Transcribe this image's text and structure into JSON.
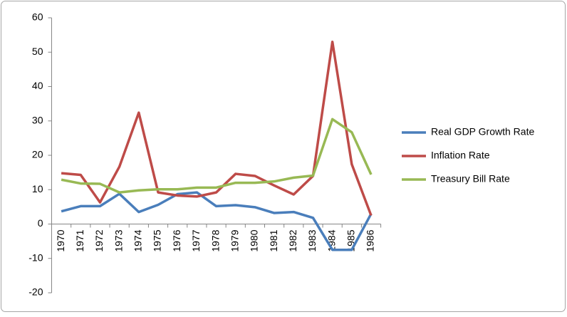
{
  "chart_data": {
    "type": "line",
    "categories": [
      "1970",
      "1971",
      "1972",
      "1973",
      "1974",
      "1975",
      "1976",
      "1977",
      "1978",
      "1979",
      "1980",
      "1981",
      "1982",
      "1983",
      "1984",
      "1985",
      "1986"
    ],
    "series": [
      {
        "name": "Real GDP Growth Rate",
        "color": "#4a7ebb",
        "values": [
          3.7,
          5.2,
          5.2,
          8.8,
          3.5,
          5.6,
          8.7,
          9.2,
          5.2,
          5.5,
          4.9,
          3.2,
          3.5,
          1.8,
          -7.5,
          -7.5,
          3.0
        ]
      },
      {
        "name": "Inflation Rate",
        "color": "#be4b48",
        "values": [
          14.8,
          14.3,
          6.3,
          16.7,
          32.4,
          9.2,
          8.3,
          8.0,
          9.2,
          14.6,
          14.0,
          11.2,
          8.6,
          14.0,
          53.0,
          17.4,
          2.5
        ]
      },
      {
        "name": "Treasury Bill Rate",
        "color": "#98b954",
        "values": [
          12.9,
          11.8,
          11.7,
          9.2,
          9.8,
          10.1,
          10.1,
          10.6,
          10.6,
          12.0,
          12.0,
          12.4,
          13.5,
          14.1,
          30.5,
          26.7,
          14.4
        ]
      }
    ],
    "ylim": [
      -20,
      60
    ],
    "yticks": [
      -20,
      -10,
      0,
      10,
      20,
      30,
      40,
      50,
      60
    ],
    "grid": false,
    "legend": "right"
  }
}
